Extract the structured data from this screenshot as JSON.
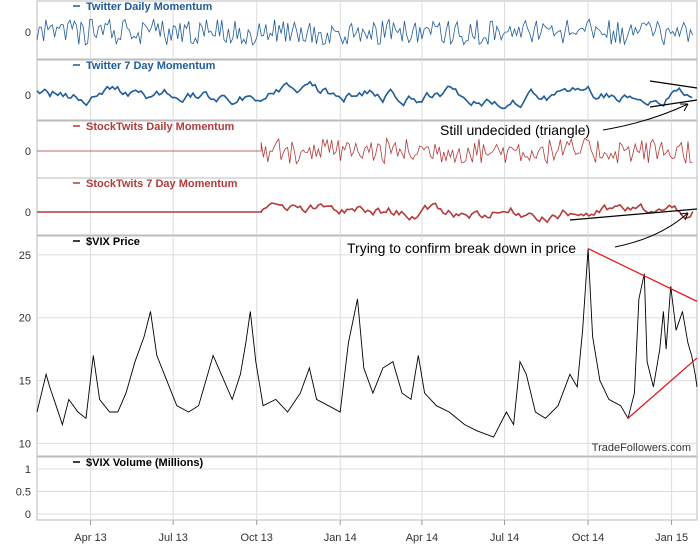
{
  "chart_data": {
    "type": "line",
    "x_ticks": [
      "Apr 13",
      "Jul 13",
      "Oct 13",
      "Jan 14",
      "Apr 14",
      "Jul 14",
      "Oct 14",
      "Jan 15"
    ],
    "x_range": [
      "2013-02-15",
      "2015-02-12"
    ],
    "watermark": "TradeFollowers.com",
    "panels": [
      {
        "title": "Twitter Daily Momentum",
        "color": "#1f5c99",
        "y_ticks": [
          "0"
        ],
        "style": "noisy",
        "start": "2013-02-15"
      },
      {
        "title": "Twitter 7 Day Momentum",
        "color": "#1f5c99",
        "y_ticks": [
          "0"
        ],
        "style": "smooth",
        "start": "2013-02-15"
      },
      {
        "title": "StockTwits Daily Momentum",
        "color": "#b33a3a",
        "y_ticks": [
          "0"
        ],
        "style": "noisy",
        "start": "2013-10-20"
      },
      {
        "title": "StockTwits 7 Day Momentum",
        "color": "#b33a3a",
        "y_ticks": [
          "0"
        ],
        "style": "smooth",
        "start": "2013-10-20"
      },
      {
        "title": "$VIX Price",
        "color": "#000000",
        "y_ticks": [
          "10",
          "15",
          "20",
          "25"
        ],
        "ylim": [
          9,
          26.5
        ],
        "series": [
          {
            "x": "2013-02-15",
            "y": 12.5
          },
          {
            "x": "2013-02-25",
            "y": 15.5
          },
          {
            "x": "2013-03-01",
            "y": 14.5
          },
          {
            "x": "2013-03-08",
            "y": 13.0
          },
          {
            "x": "2013-03-15",
            "y": 11.5
          },
          {
            "x": "2013-03-22",
            "y": 13.5
          },
          {
            "x": "2013-04-01",
            "y": 12.5
          },
          {
            "x": "2013-04-10",
            "y": 12.0
          },
          {
            "x": "2013-04-18",
            "y": 17.0
          },
          {
            "x": "2013-04-25",
            "y": 13.5
          },
          {
            "x": "2013-05-06",
            "y": 12.5
          },
          {
            "x": "2013-05-15",
            "y": 12.5
          },
          {
            "x": "2013-05-24",
            "y": 14.0
          },
          {
            "x": "2013-06-03",
            "y": 16.5
          },
          {
            "x": "2013-06-13",
            "y": 18.5
          },
          {
            "x": "2013-06-20",
            "y": 20.5
          },
          {
            "x": "2013-06-27",
            "y": 17.0
          },
          {
            "x": "2013-07-08",
            "y": 15.0
          },
          {
            "x": "2013-07-19",
            "y": 13.0
          },
          {
            "x": "2013-08-01",
            "y": 12.5
          },
          {
            "x": "2013-08-12",
            "y": 13.0
          },
          {
            "x": "2013-08-20",
            "y": 15.0
          },
          {
            "x": "2013-08-28",
            "y": 17.0
          },
          {
            "x": "2013-09-06",
            "y": 15.5
          },
          {
            "x": "2013-09-18",
            "y": 13.5
          },
          {
            "x": "2013-09-27",
            "y": 15.5
          },
          {
            "x": "2013-10-03",
            "y": 18.0
          },
          {
            "x": "2013-10-08",
            "y": 20.5
          },
          {
            "x": "2013-10-14",
            "y": 16.5
          },
          {
            "x": "2013-10-22",
            "y": 13.0
          },
          {
            "x": "2013-11-05",
            "y": 13.5
          },
          {
            "x": "2013-11-18",
            "y": 12.5
          },
          {
            "x": "2013-12-02",
            "y": 14.0
          },
          {
            "x": "2013-12-12",
            "y": 16.0
          },
          {
            "x": "2013-12-20",
            "y": 13.5
          },
          {
            "x": "2014-01-02",
            "y": 13.0
          },
          {
            "x": "2014-01-15",
            "y": 12.5
          },
          {
            "x": "2014-01-24",
            "y": 18.0
          },
          {
            "x": "2014-02-03",
            "y": 21.5
          },
          {
            "x": "2014-02-10",
            "y": 16.0
          },
          {
            "x": "2014-02-20",
            "y": 14.0
          },
          {
            "x": "2014-03-03",
            "y": 16.0
          },
          {
            "x": "2014-03-14",
            "y": 16.5
          },
          {
            "x": "2014-03-24",
            "y": 14.0
          },
          {
            "x": "2014-04-03",
            "y": 13.5
          },
          {
            "x": "2014-04-11",
            "y": 17.0
          },
          {
            "x": "2014-04-18",
            "y": 14.0
          },
          {
            "x": "2014-05-01",
            "y": 13.0
          },
          {
            "x": "2014-05-15",
            "y": 12.5
          },
          {
            "x": "2014-06-01",
            "y": 11.5
          },
          {
            "x": "2014-06-15",
            "y": 11.0
          },
          {
            "x": "2014-07-03",
            "y": 10.5
          },
          {
            "x": "2014-07-17",
            "y": 12.5
          },
          {
            "x": "2014-07-25",
            "y": 11.5
          },
          {
            "x": "2014-08-01",
            "y": 16.5
          },
          {
            "x": "2014-08-08",
            "y": 15.5
          },
          {
            "x": "2014-08-18",
            "y": 12.5
          },
          {
            "x": "2014-08-29",
            "y": 12.0
          },
          {
            "x": "2014-09-12",
            "y": 13.0
          },
          {
            "x": "2014-09-25",
            "y": 15.5
          },
          {
            "x": "2014-10-03",
            "y": 14.5
          },
          {
            "x": "2014-10-09",
            "y": 19.0
          },
          {
            "x": "2014-10-15",
            "y": 25.5
          },
          {
            "x": "2014-10-20",
            "y": 18.5
          },
          {
            "x": "2014-10-28",
            "y": 15.0
          },
          {
            "x": "2014-11-07",
            "y": 13.5
          },
          {
            "x": "2014-11-20",
            "y": 13.0
          },
          {
            "x": "2014-11-28",
            "y": 12.0
          },
          {
            "x": "2014-12-05",
            "y": 14.0
          },
          {
            "x": "2014-12-10",
            "y": 21.5
          },
          {
            "x": "2014-12-16",
            "y": 23.5
          },
          {
            "x": "2014-12-19",
            "y": 16.5
          },
          {
            "x": "2014-12-26",
            "y": 14.5
          },
          {
            "x": "2015-01-02",
            "y": 17.5
          },
          {
            "x": "2015-01-06",
            "y": 20.5
          },
          {
            "x": "2015-01-09",
            "y": 17.5
          },
          {
            "x": "2015-01-14",
            "y": 22.5
          },
          {
            "x": "2015-01-20",
            "y": 19.0
          },
          {
            "x": "2015-01-27",
            "y": 20.5
          },
          {
            "x": "2015-02-02",
            "y": 18.0
          },
          {
            "x": "2015-02-06",
            "y": 17.0
          },
          {
            "x": "2015-02-10",
            "y": 15.5
          },
          {
            "x": "2015-02-12",
            "y": 14.5
          }
        ]
      },
      {
        "title": "$VIX Volume (Millions)",
        "color": "#000000",
        "y_ticks": [
          "0",
          "0.5",
          "1"
        ]
      }
    ],
    "annotations": [
      "Still undecided (triangle)",
      "Trying to confirm break down in price"
    ],
    "colors": {
      "twitter": "#1f5c99",
      "stocktwits": "#b33a3a",
      "trendline_red": "#e31a1c",
      "trendline_black": "#000000",
      "grid": "#dddddd"
    }
  }
}
